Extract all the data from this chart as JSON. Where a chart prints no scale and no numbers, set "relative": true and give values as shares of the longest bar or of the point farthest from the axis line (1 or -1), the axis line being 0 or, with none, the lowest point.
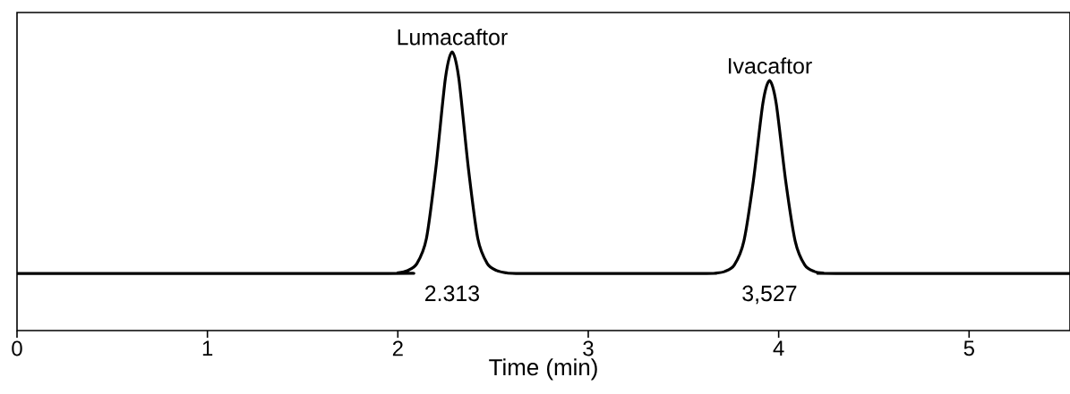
{
  "chart_data": {
    "type": "line",
    "relative": true,
    "xlabel": "Time (min)",
    "xlim": [
      0,
      5.53
    ],
    "xticks": [
      0,
      1,
      2,
      3,
      4,
      5
    ],
    "x": [
      0,
      1.95,
      2.0,
      2.05,
      2.1,
      2.15,
      2.2,
      2.25,
      2.285,
      2.32,
      2.37,
      2.42,
      2.47,
      2.52,
      2.57,
      2.62,
      3.0,
      3.617,
      3.667,
      3.717,
      3.767,
      3.817,
      3.867,
      3.917,
      3.952,
      3.987,
      4.037,
      4.087,
      4.137,
      4.187,
      4.237,
      4.3,
      5.53
    ],
    "series": [
      {
        "color": "#000000",
        "values": [
          0.205,
          0.205,
          0.207,
          0.215,
          0.24,
          0.33,
          0.585,
          0.906,
          1,
          0.906,
          0.585,
          0.33,
          0.24,
          0.215,
          0.207,
          0.205,
          0.205,
          0.205,
          0.206,
          0.212,
          0.235,
          0.32,
          0.536,
          0.815,
          0.897,
          0.815,
          0.536,
          0.32,
          0.235,
          0.212,
          0.206,
          0.205,
          0.205
        ]
      }
    ],
    "annotations": [
      {
        "text": "Lumacaftor",
        "x": 2.285,
        "y": 1
      },
      {
        "text": "Ivacaftor",
        "x": 3.952,
        "y": 0.897
      },
      "2.313",
      "3,527"
    ],
    "marker": "none",
    "line_style": "solid",
    "grid": false
  }
}
